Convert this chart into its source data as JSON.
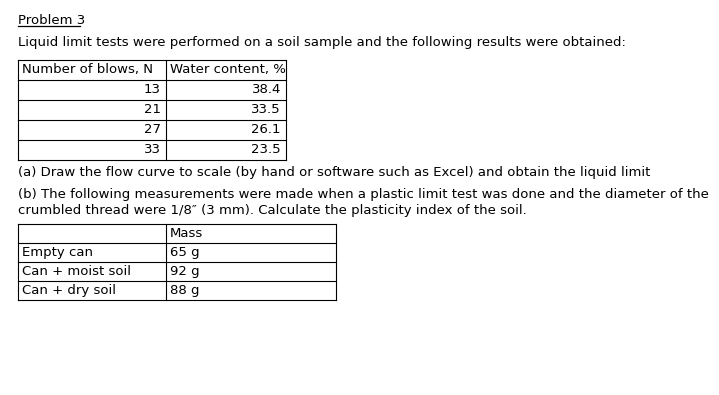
{
  "title": "Problem 3",
  "intro_text": "Liquid limit tests were performed on a soil sample and the following results were obtained:",
  "table1_col1_header": "Number of blows, N",
  "table1_col2_header": "Water content, %",
  "table1_rows": [
    [
      "13",
      "38.4"
    ],
    [
      "21",
      "33.5"
    ],
    [
      "27",
      "26.1"
    ],
    [
      "33",
      "23.5"
    ]
  ],
  "part_a": "(a) Draw the flow curve to scale (by hand or software such as Excel) and obtain the liquid limit",
  "part_b_line1": "(b) The following measurements were made when a plastic limit test was done and the diameter of the",
  "part_b_line2": "crumbled thread were 1/8″ (3 mm). Calculate the plasticity index of the soil.",
  "table2_col2_header": "Mass",
  "table2_rows": [
    [
      "Empty can",
      "65 g"
    ],
    [
      "Can + moist soil",
      "92 g"
    ],
    [
      "Can + dry soil",
      "88 g"
    ]
  ],
  "bg_color": "#ffffff",
  "text_color": "#000000",
  "line_color": "#000000",
  "font_size": 9.5,
  "title_font_size": 9.5
}
